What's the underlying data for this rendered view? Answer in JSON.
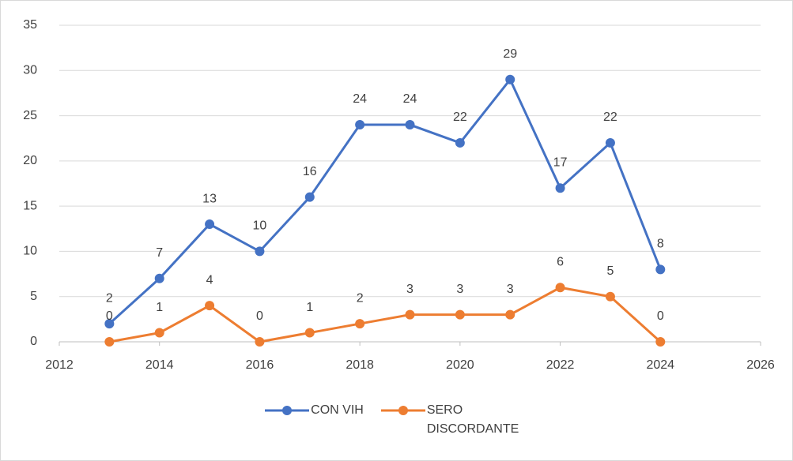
{
  "chart_data": {
    "type": "line",
    "x": [
      2013,
      2014,
      2015,
      2016,
      2017,
      2018,
      2019,
      2020,
      2021,
      2022,
      2023,
      2024
    ],
    "series": [
      {
        "name": "CON VIH",
        "color": "#4472c4",
        "values": [
          2,
          7,
          13,
          10,
          16,
          24,
          24,
          22,
          29,
          17,
          22,
          8
        ]
      },
      {
        "name": "SERO DISCORDANTE",
        "color": "#ed7d31",
        "values": [
          0,
          1,
          4,
          0,
          1,
          2,
          3,
          3,
          3,
          6,
          5,
          0
        ]
      }
    ],
    "xlim": [
      2012,
      2026
    ],
    "xticks": [
      2012,
      2014,
      2016,
      2018,
      2020,
      2022,
      2024,
      2026
    ],
    "ylim": [
      0,
      35
    ],
    "yticks": [
      0,
      5,
      10,
      15,
      20,
      25,
      30,
      35
    ],
    "grid": true,
    "legend": "bottom"
  }
}
